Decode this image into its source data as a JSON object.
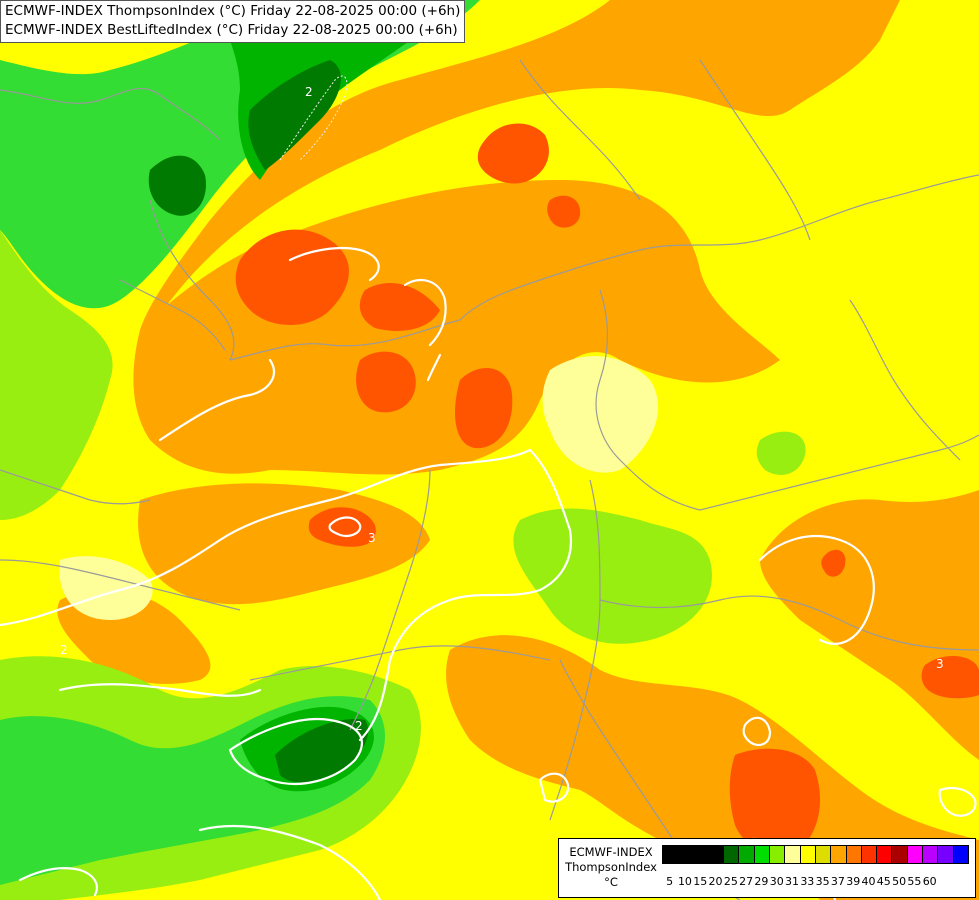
{
  "header": {
    "line1": "ECMWF-INDEX ThompsonIndex (°C) Friday 22-08-2025 00:00 (+6h)",
    "line2": "ECMWF-INDEX BestLiftedIndex (°C) Friday 22-08-2025 00:00 (+6h)"
  },
  "map": {
    "contour_labels": [
      "2",
      "2",
      "3",
      "2",
      "3"
    ],
    "palette": {
      "dark_green": "#007a00",
      "green": "#00b400",
      "light_green": "#33dd33",
      "yellow_green": "#99ee11",
      "pale_yellow": "#ffff99",
      "yellow": "#ffff00",
      "orange": "#ffa500",
      "red_orange": "#ff5500",
      "border": "#aaaaaa",
      "contour": "#ffffff"
    }
  },
  "legend": {
    "line1": "ECMWF-INDEX",
    "line2": "ThompsonIndex",
    "line3": "°C",
    "colors": [
      "#000000",
      "#000000",
      "#000000",
      "#000000",
      "#006600",
      "#00aa00",
      "#00dd00",
      "#88ee00",
      "#ffff99",
      "#ffff00",
      "#dddd00",
      "#ffa500",
      "#ff7700",
      "#ff3300",
      "#ff0000",
      "#aa0000",
      "#ff00ff",
      "#bb00ff",
      "#7700ff",
      "#0000ff"
    ],
    "ticks": [
      "5",
      "10",
      "15",
      "20",
      "25",
      "27",
      "29",
      "30",
      "31",
      "33",
      "35",
      "37",
      "39",
      "40",
      "45",
      "50",
      "55",
      "60"
    ]
  }
}
